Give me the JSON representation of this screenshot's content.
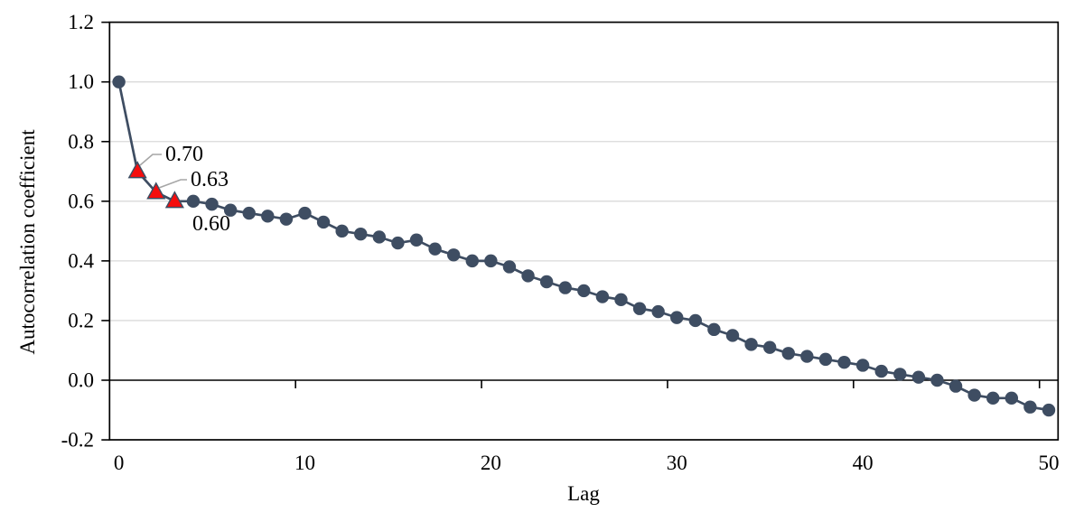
{
  "chart_data": {
    "type": "line",
    "title": "",
    "xlabel": "Lag",
    "ylabel": "Autocorrelation coefficient",
    "series_name": "Autocorrelation coefficient by lag",
    "x": [
      0,
      1,
      2,
      3,
      4,
      5,
      6,
      7,
      8,
      9,
      10,
      11,
      12,
      13,
      14,
      15,
      16,
      17,
      18,
      19,
      20,
      21,
      22,
      23,
      24,
      25,
      26,
      27,
      28,
      29,
      30,
      31,
      32,
      33,
      34,
      35,
      36,
      37,
      38,
      39,
      40,
      41,
      42,
      43,
      44,
      45,
      46,
      47,
      48,
      49,
      50
    ],
    "values": [
      1.0,
      0.7,
      0.63,
      0.6,
      0.6,
      0.59,
      0.57,
      0.56,
      0.55,
      0.54,
      0.56,
      0.53,
      0.5,
      0.49,
      0.48,
      0.46,
      0.47,
      0.44,
      0.42,
      0.4,
      0.4,
      0.38,
      0.35,
      0.33,
      0.31,
      0.3,
      0.28,
      0.27,
      0.24,
      0.23,
      0.21,
      0.2,
      0.17,
      0.15,
      0.12,
      0.11,
      0.09,
      0.08,
      0.07,
      0.06,
      0.05,
      0.03,
      0.02,
      0.01,
      0.0,
      -0.02,
      -0.05,
      -0.06,
      -0.06,
      -0.09,
      -0.1
    ],
    "xlim": [
      -0.5,
      50.5
    ],
    "ylim": [
      -0.2,
      1.2
    ],
    "grid": "horizontal",
    "legend": "none",
    "x_tick_values": [
      0,
      10,
      20,
      30,
      40,
      50
    ],
    "x_tick_labels": [
      "0",
      "10",
      "20",
      "30",
      "40",
      "50"
    ],
    "y_tick_values": [
      1.2,
      1.0,
      0.8,
      0.6,
      0.4,
      0.2,
      0.0,
      -0.2
    ],
    "y_tick_labels": [
      "1.2",
      "1.0",
      "0.8",
      "0.6",
      "0.4",
      "0.2",
      "0.0",
      "-0.2"
    ],
    "callouts": [
      {
        "lag": 1,
        "value": 0.7,
        "label": "0.70"
      },
      {
        "lag": 2,
        "value": 0.63,
        "label": "0.63"
      },
      {
        "lag": 3,
        "value": 0.6,
        "label": "0.60"
      }
    ],
    "colors": {
      "series": "#3E4D62",
      "marker": "#3E4D62",
      "highlight_fill": "#F50D0D",
      "highlight_stroke": "#3E4D62",
      "gridline": "#DADADA",
      "axis": "#000000",
      "leader_line": "#A6A6A6",
      "text": "#000000",
      "background": "#FFFFFF"
    }
  }
}
